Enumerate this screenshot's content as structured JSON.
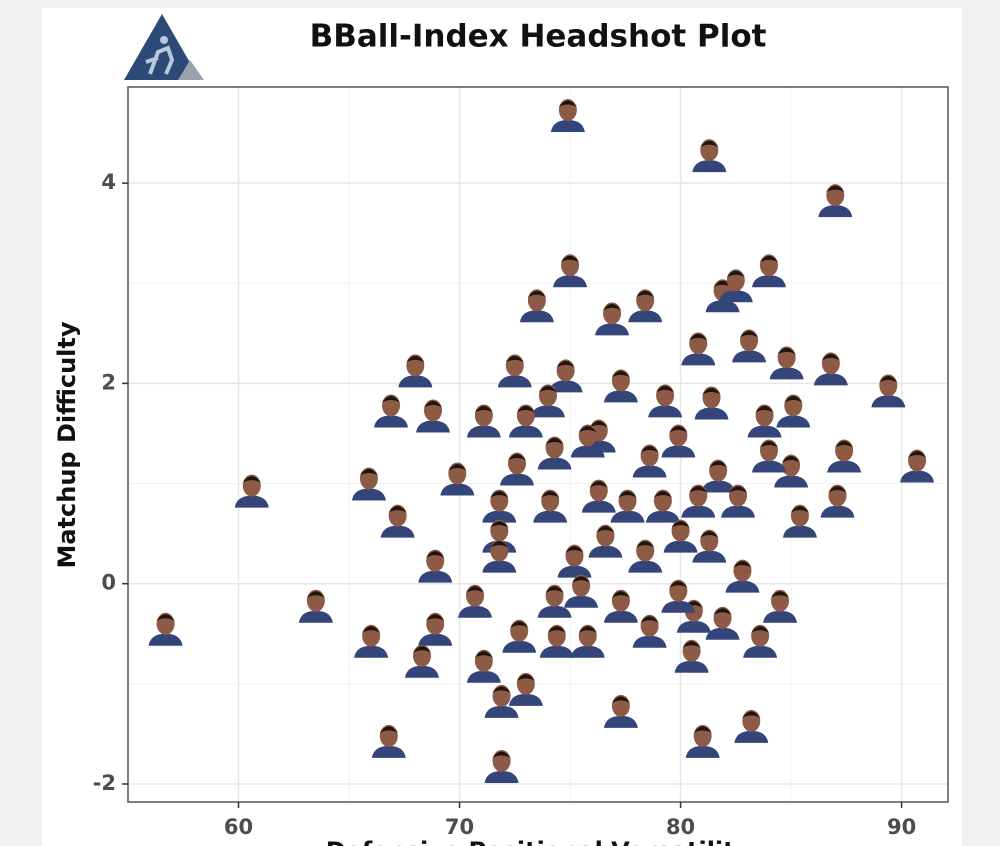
{
  "chart_data": {
    "type": "scatter",
    "title": "BBall-Index Headshot Plot",
    "x_label": "Defensive Positional Versatility",
    "y_label": "Matchup Difficulty",
    "xlim": [
      55.0,
      92.1
    ],
    "ylim": [
      -2.18,
      4.96
    ],
    "xticks": [
      60,
      70,
      80,
      90
    ],
    "yticks": [
      -2,
      0,
      2,
      4
    ],
    "grid": true,
    "color": "#34457a",
    "face_color": "#8d5b45",
    "series": [
      {
        "x": [
          56.7,
          60.6,
          63.5,
          66.8,
          66.0,
          65.9,
          67.2,
          68.0,
          66.9,
          68.8,
          68.9,
          68.9,
          68.3,
          69.9,
          71.1,
          72.5,
          73.5,
          74.9,
          75.0,
          76.9,
          78.4,
          81.3,
          87.0,
          84.0,
          81.9,
          82.5,
          80.8,
          83.1,
          84.8,
          86.8,
          89.4,
          90.7,
          87.4,
          87.1,
          85.4,
          85.0,
          85.1,
          83.8,
          84.0,
          81.4,
          79.3,
          77.3,
          74.8,
          74.0,
          73.0,
          74.3,
          76.3,
          75.8,
          78.6,
          79.9,
          81.7,
          82.6,
          80.8,
          79.2,
          77.6,
          76.3,
          74.1,
          72.6,
          71.8,
          71.8,
          71.8,
          75.2,
          76.6,
          78.4,
          80.0,
          81.3,
          82.8,
          84.5,
          83.6,
          81.9,
          80.5,
          80.6,
          79.9,
          78.6,
          77.3,
          75.5,
          74.3,
          72.7,
          74.4,
          75.8,
          71.1,
          71.9,
          73.0,
          70.7,
          77.3,
          81.0,
          83.2,
          71.9
        ],
        "values": [
          -0.44,
          0.94,
          -0.21,
          -1.56,
          -0.56,
          1.01,
          0.64,
          2.14,
          1.74,
          1.69,
          0.19,
          -0.44,
          -0.76,
          1.06,
          1.64,
          2.14,
          2.79,
          4.69,
          3.14,
          2.66,
          2.79,
          4.29,
          3.84,
          3.14,
          2.89,
          2.99,
          2.36,
          2.39,
          2.22,
          2.16,
          1.94,
          1.19,
          1.29,
          0.84,
          0.64,
          1.14,
          1.74,
          1.64,
          1.29,
          1.82,
          1.84,
          1.99,
          2.09,
          1.84,
          1.64,
          1.32,
          1.49,
          1.44,
          1.24,
          1.44,
          1.09,
          0.84,
          0.84,
          0.79,
          0.79,
          0.89,
          0.79,
          1.16,
          0.79,
          0.49,
          0.29,
          0.24,
          0.44,
          0.29,
          0.49,
          0.39,
          0.09,
          -0.21,
          -0.56,
          -0.38,
          -0.71,
          -0.31,
          -0.11,
          -0.46,
          -0.21,
          -0.06,
          -0.16,
          -0.51,
          -0.56,
          -0.56,
          -0.81,
          -1.16,
          -1.04,
          -0.16,
          -1.26,
          -1.56,
          -1.41,
          -1.81
        ]
      }
    ]
  }
}
